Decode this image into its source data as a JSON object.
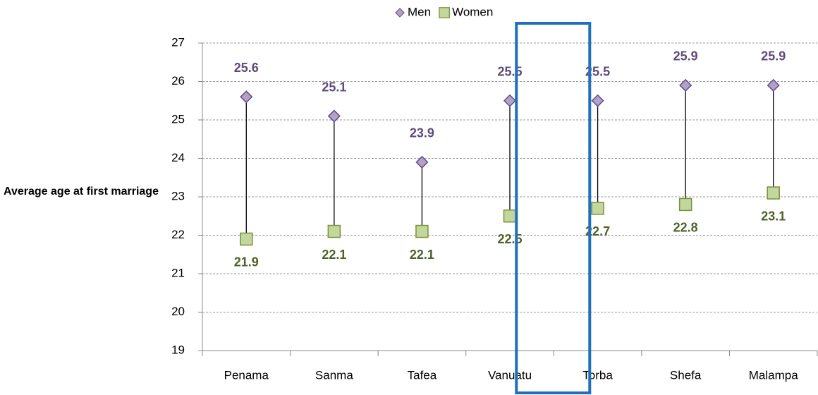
{
  "chart_data": {
    "type": "dot",
    "ylabel": "Average age at first marriage",
    "categories": [
      "Penama",
      "Sanma",
      "Tafea",
      "Vanuatu",
      "Torba",
      "Shefa",
      "Malampa"
    ],
    "series": [
      {
        "name": "Men",
        "color": "#b3a2c7",
        "values": [
          25.6,
          25.1,
          23.9,
          25.5,
          25.5,
          25.9,
          25.9
        ]
      },
      {
        "name": "Women",
        "color": "#c3d69b",
        "values": [
          21.9,
          22.1,
          22.1,
          22.5,
          22.7,
          22.8,
          23.1
        ]
      }
    ],
    "ylim": [
      19,
      27
    ],
    "yticks": [
      19,
      20,
      21,
      22,
      23,
      24,
      25,
      26,
      27
    ],
    "grid": true,
    "legend": "top",
    "highlight": "Torba"
  }
}
